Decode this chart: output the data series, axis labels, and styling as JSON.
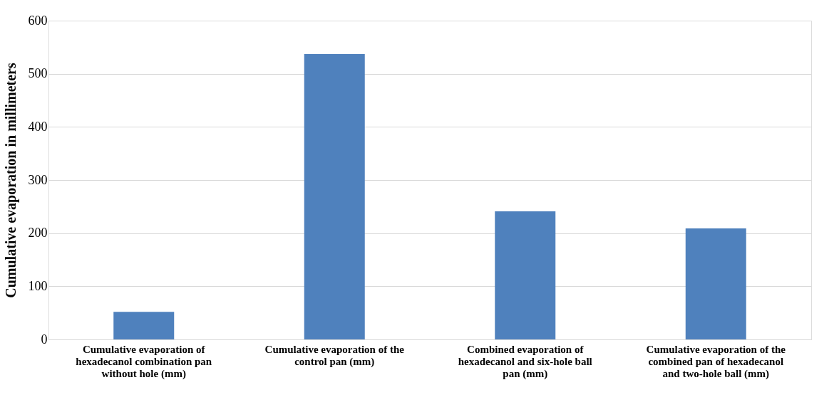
{
  "chart_data": {
    "type": "bar",
    "ylabel": "Cumulative evaporation in millimeters",
    "categories": [
      "Cumulative evaporation of hexadecanol combination pan without hole (mm)",
      "Cumulative evaporation of the control pan (mm)",
      "Combined evaporation of hexadecanol and six-hole ball pan (mm)",
      "Cumulative evaporation of the combined pan of hexadecanol and two-hole ball (mm)"
    ],
    "values": [
      52,
      537,
      241,
      209
    ],
    "color": "#4f81bd",
    "ylim": [
      0,
      600
    ],
    "yticks": [
      0,
      100,
      200,
      300,
      400,
      500,
      600
    ],
    "grid": "y",
    "legend": false
  }
}
